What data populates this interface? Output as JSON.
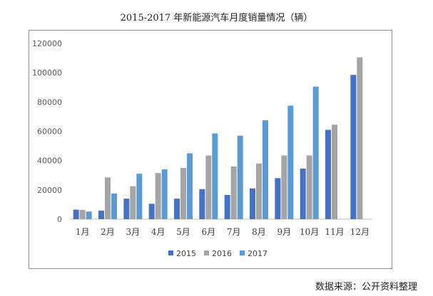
{
  "title": "2015-2017 年新能源汽车月度销量情况（辆）",
  "source": "数据来源：公开资料整理",
  "chart_data": {
    "type": "bar",
    "title": "2015-2017 年新能源汽车月度销量情况（辆）",
    "categories": [
      "1月",
      "2月",
      "3月",
      "4月",
      "5月",
      "6月",
      "7月",
      "8月",
      "9月",
      "10月",
      "11月",
      "12月"
    ],
    "series": [
      {
        "name": "2015",
        "color": "#4472c4",
        "values": [
          6500,
          5800,
          14000,
          10500,
          14000,
          20500,
          16500,
          21000,
          28000,
          34500,
          61000,
          98500
        ]
      },
      {
        "name": "2016",
        "color": "#a5a5a5",
        "values": [
          6300,
          28500,
          22500,
          31500,
          35000,
          43500,
          36000,
          38000,
          43500,
          43500,
          64500,
          110500
        ]
      },
      {
        "name": "2017",
        "color": "#5b9bd5",
        "values": [
          5200,
          17500,
          31000,
          34000,
          45000,
          58500,
          57000,
          67500,
          77500,
          90500,
          null,
          null
        ]
      }
    ],
    "yticks": [
      "0",
      "20000",
      "40000",
      "60000",
      "80000",
      "100000",
      "120000"
    ],
    "ylim": [
      0,
      120000
    ],
    "grid": false,
    "legend": "bottom"
  }
}
